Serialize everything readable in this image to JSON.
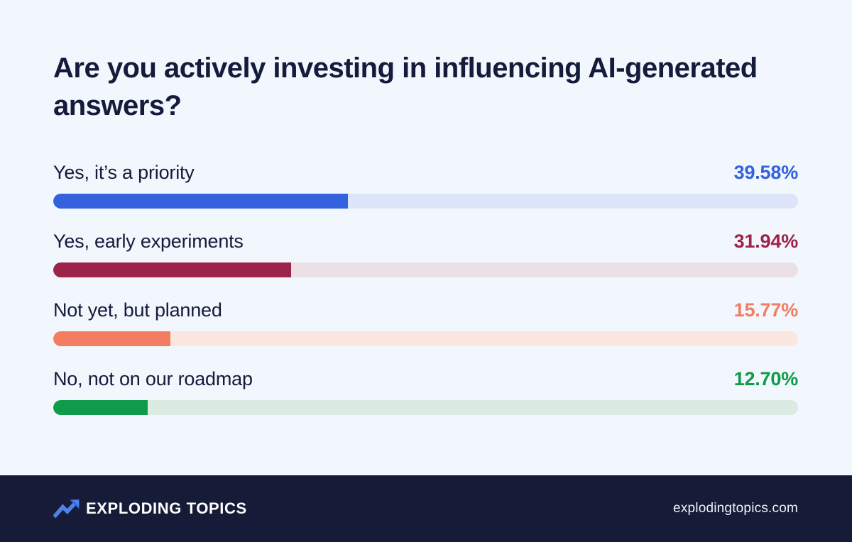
{
  "chart_data": {
    "type": "bar",
    "orientation": "horizontal",
    "title": "Are you actively investing in influencing AI-generated answers?",
    "categories": [
      "Yes, it’s a priority",
      "Yes, early experiments",
      "Not yet, but planned",
      "No, not on our roadmap"
    ],
    "values": [
      39.58,
      31.94,
      15.77,
      12.7
    ],
    "value_labels": [
      "39.58%",
      "31.94%",
      "15.77%",
      "12.70%"
    ],
    "colors": [
      "#3461dd",
      "#9c2349",
      "#f37d60",
      "#0f9b4a"
    ],
    "track_colors": [
      "#dce6f8",
      "#ebe0e5",
      "#fbe7e0",
      "#dcebe1"
    ],
    "xlim": [
      0,
      100
    ],
    "grid": false,
    "legend": "none"
  },
  "footer": {
    "brand": "EXPLODING TOPICS",
    "website": "explodingtopics.com",
    "logo_icon": "trending-up-arrow",
    "logo_color_light": "#4f82e6",
    "logo_color_dark": "#3461dd",
    "background": "#161b38"
  },
  "page": {
    "background": "#f2f6fd",
    "text_color": "#141b3b"
  }
}
